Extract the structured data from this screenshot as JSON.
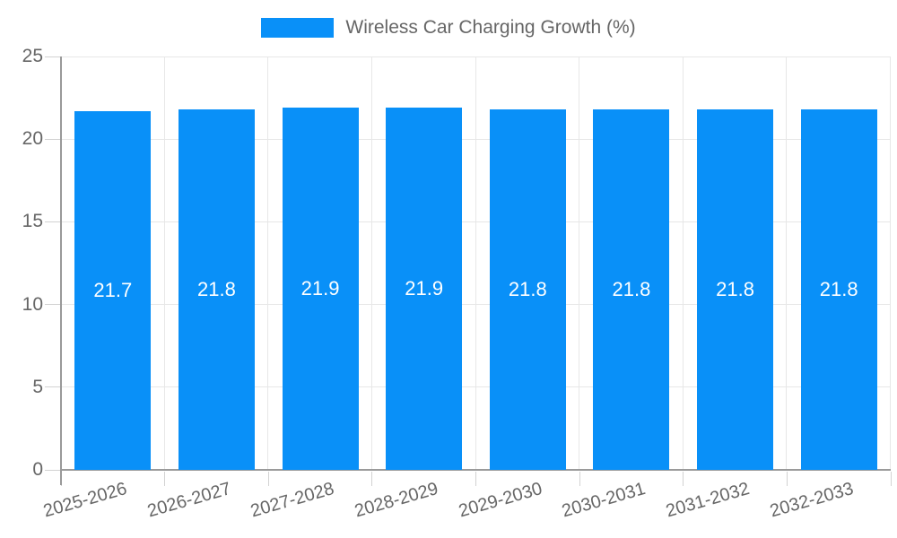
{
  "legend": {
    "label": "Wireless Car Charging Growth (%)"
  },
  "chart_data": {
    "type": "bar",
    "title": "Wireless Car Charging Growth (%)",
    "categories": [
      "2025-2026",
      "2026-2027",
      "2027-2028",
      "2028-2029",
      "2029-2030",
      "2030-2031",
      "2031-2032",
      "2032-2033"
    ],
    "values": [
      21.7,
      21.8,
      21.9,
      21.9,
      21.8,
      21.8,
      21.8,
      21.8
    ],
    "value_labels": [
      "21.7",
      "21.8",
      "21.9",
      "21.9",
      "21.8",
      "21.8",
      "21.8",
      "21.8"
    ],
    "xlabel": "",
    "ylabel": "",
    "ylim": [
      0,
      25
    ],
    "yticks": [
      0,
      5,
      10,
      15,
      20,
      25
    ],
    "ytick_labels": [
      "0",
      "5",
      "10",
      "15",
      "20",
      "25"
    ],
    "grid": true,
    "legend_position": "top",
    "colors": {
      "bar": "#0990f8",
      "value_label": "#ffffff",
      "axis_text": "#666666",
      "gridline": "#e7e7e7",
      "tick_mark": "#d2d2d2",
      "axis_line": "#9a9a9a",
      "background": "#ffffff"
    }
  }
}
